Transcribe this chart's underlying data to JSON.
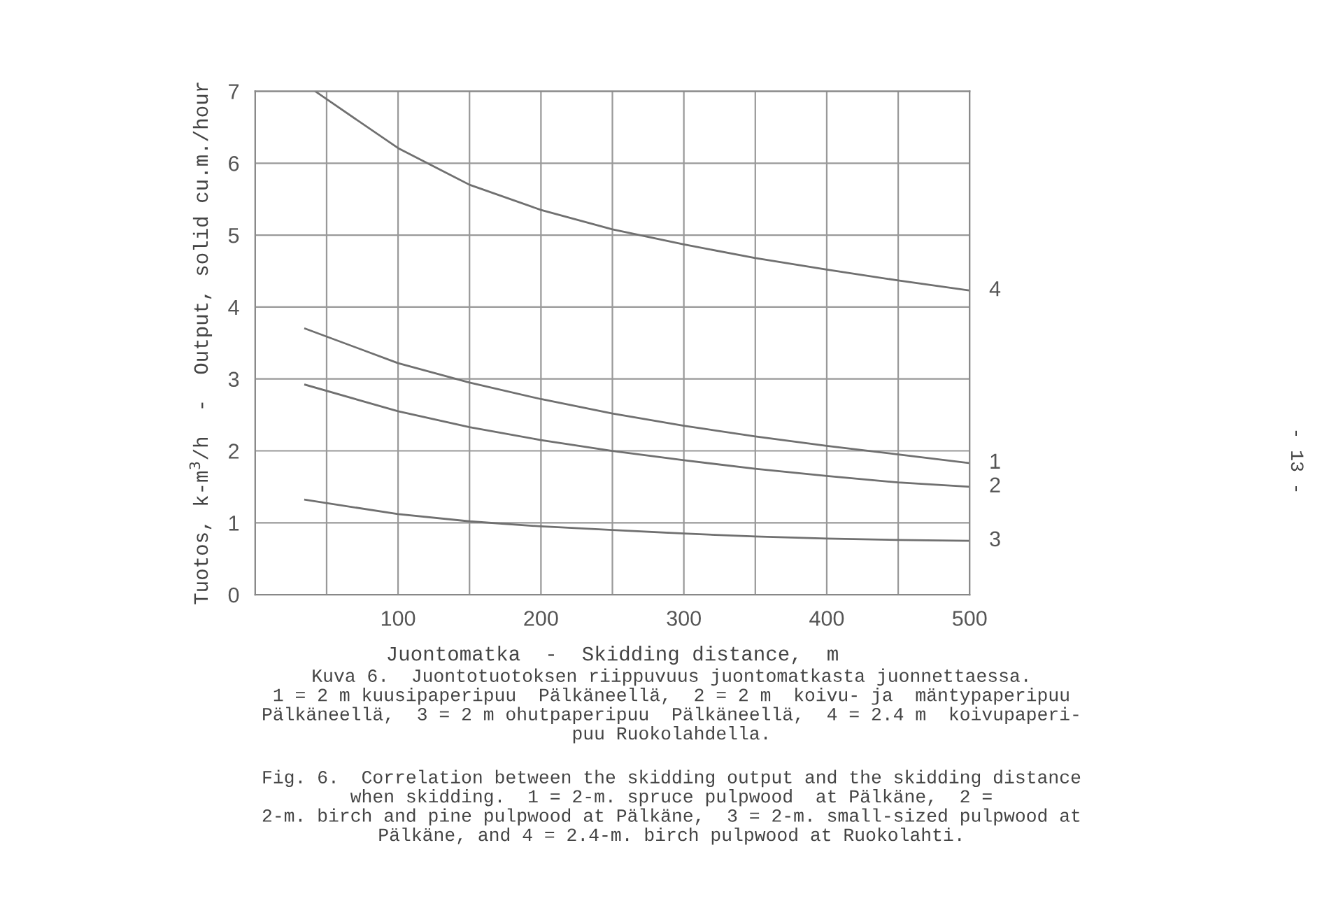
{
  "chart_data": {
    "type": "line",
    "xlabel": "Juontomatka  -  Skidding distance,  m",
    "ylabel": "Tuotos, k-m$^{3}$/h  -  Output, solid cu.m./hour",
    "xlim": [
      0,
      500
    ],
    "ylim": [
      0,
      7
    ],
    "xticks": [
      {
        "value": 0,
        "label": null
      },
      {
        "value": 50,
        "label": null
      },
      100,
      {
        "value": 150,
        "label": null
      },
      200,
      {
        "value": 250,
        "label": null
      },
      300,
      {
        "value": 350,
        "label": null
      },
      400,
      {
        "value": 450,
        "label": null
      },
      500
    ],
    "yticks": [
      0,
      1,
      2,
      3,
      4,
      5,
      6,
      7
    ],
    "grid": true,
    "marker": "none",
    "line_style": "solid",
    "series": [
      {
        "name": "4",
        "color": "#707070",
        "x": [
          42,
          100,
          150,
          200,
          250,
          300,
          350,
          400,
          450,
          500
        ],
        "values": [
          7.0,
          6.21,
          5.7,
          5.35,
          5.08,
          4.87,
          4.68,
          4.52,
          4.37,
          4.23
        ]
      },
      {
        "name": "1",
        "color": "#707070",
        "x": [
          35,
          100,
          150,
          200,
          250,
          300,
          350,
          400,
          450,
          500
        ],
        "values": [
          3.7,
          3.22,
          2.95,
          2.72,
          2.52,
          2.35,
          2.2,
          2.07,
          1.95,
          1.83
        ]
      },
      {
        "name": "2",
        "color": "#707070",
        "x": [
          35,
          100,
          150,
          200,
          250,
          300,
          350,
          400,
          450,
          500
        ],
        "values": [
          2.92,
          2.55,
          2.33,
          2.15,
          2.0,
          1.87,
          1.75,
          1.65,
          1.56,
          1.5
        ]
      },
      {
        "name": "3",
        "color": "#707070",
        "x": [
          35,
          100,
          150,
          200,
          250,
          300,
          350,
          400,
          450,
          500
        ],
        "values": [
          1.32,
          1.12,
          1.02,
          0.95,
          0.9,
          0.85,
          0.81,
          0.78,
          0.76,
          0.75
        ]
      }
    ],
    "annotations": [
      "Kuva 6.  Juontotuotoksen riippuvuus juontomatkasta juonnettaessa.\n1 = 2 m kuusipaperipuu  Pälkäneellä,  2 = 2 m  koivu- ja  mäntypaperipuu\nPälkäneellä,  3 = 2 m ohutpaperipuu  Pälkäneellä,  4 = 2.4 m  koivupaperi-\npuu Ruokolahdella.",
      "Fig. 6.  Correlation between the skidding output and the skidding distance\nwhen skidding.  1 = 2-m. spruce pulpwood  at Pälkäne,  2 =\n2-m. birch and pine pulpwood at Pälkäne,  3 = 2-m. small-sized pulpwood at\nPälkäne, and 4 = 2.4-m. birch pulpwood at Ruokolahti.",
      "- 13 -"
    ]
  }
}
